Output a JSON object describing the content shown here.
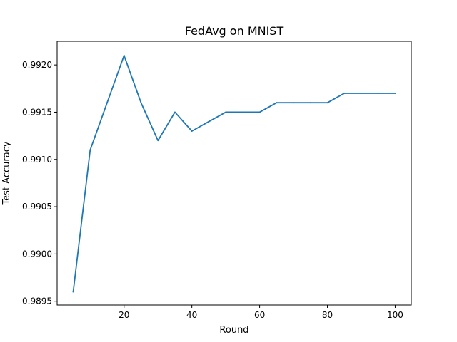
{
  "chart_data": {
    "type": "line",
    "title": "FedAvg on MNIST",
    "xlabel": "Round",
    "ylabel": "Test Accuracy",
    "xlim": [
      0.25,
      104.75
    ],
    "ylim": [
      0.98946,
      0.99225
    ],
    "xticks": [
      20,
      40,
      60,
      80,
      100
    ],
    "xtick_labels": [
      "20",
      "40",
      "60",
      "80",
      "100"
    ],
    "yticks": [
      0.9895,
      0.99,
      0.9905,
      0.991,
      0.9915,
      0.992
    ],
    "ytick_labels": [
      "0.9895",
      "0.9900",
      "0.9905",
      "0.9910",
      "0.9915",
      "0.9920"
    ],
    "grid": false,
    "series": [
      {
        "color": "#1f77b4",
        "x": [
          5,
          10,
          15,
          20,
          25,
          30,
          35,
          40,
          45,
          50,
          55,
          60,
          65,
          70,
          75,
          80,
          85,
          90,
          95,
          100
        ],
        "y": [
          0.9896,
          0.9911,
          0.9916,
          0.9921,
          0.9916,
          0.9912,
          0.9915,
          0.9913,
          0.9914,
          0.9915,
          0.9915,
          0.9915,
          0.9916,
          0.9916,
          0.9916,
          0.9916,
          0.9917,
          0.9917,
          0.9917,
          0.9917
        ]
      }
    ]
  }
}
